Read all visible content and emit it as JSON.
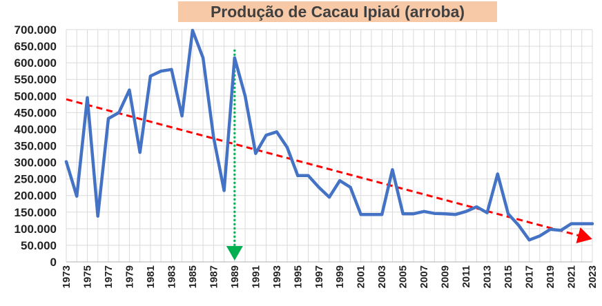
{
  "chart_data": {
    "type": "line",
    "title": "Produção de Cacau Ipiaú (arroba)",
    "xlabel": "",
    "ylabel": "",
    "ylim": [
      0,
      700000
    ],
    "yticks": [
      0,
      50000,
      100000,
      150000,
      200000,
      250000,
      300000,
      350000,
      400000,
      450000,
      500000,
      550000,
      600000,
      650000,
      700000
    ],
    "ytick_labels": [
      "0",
      "50.000",
      "100.000",
      "150.000",
      "200.000",
      "250.000",
      "300.000",
      "350.000",
      "400.000",
      "450.000",
      "500.000",
      "550.000",
      "600.000",
      "650.000",
      "700.000"
    ],
    "xlim": [
      1973,
      2023
    ],
    "xtick_labels": [
      "1973",
      "1975",
      "1977",
      "1979",
      "1981",
      "1983",
      "1985",
      "1987",
      "1989",
      "1991",
      "1993",
      "1995",
      "1997",
      "1999",
      "2001",
      "2003",
      "2005",
      "2007",
      "2009",
      "2011",
      "2013",
      "2015",
      "2017",
      "2019",
      "2021",
      "2023"
    ],
    "grid": true,
    "series": [
      {
        "color": "#4472c4",
        "x": [
          1973,
          1974,
          1975,
          1976,
          1977,
          1978,
          1979,
          1980,
          1981,
          1982,
          1983,
          1984,
          1985,
          1986,
          1987,
          1988,
          1989,
          1990,
          1991,
          1992,
          1993,
          1994,
          1995,
          1996,
          1997,
          1998,
          1999,
          2000,
          2001,
          2002,
          2003,
          2004,
          2005,
          2006,
          2007,
          2008,
          2009,
          2010,
          2011,
          2012,
          2013,
          2014,
          2015,
          2016,
          2017,
          2018,
          2019,
          2020,
          2021,
          2022,
          2023
        ],
        "values": [
          302000,
          198000,
          495000,
          138000,
          432000,
          450000,
          518000,
          330000,
          560000,
          575000,
          580000,
          440000,
          698000,
          615000,
          375000,
          215000,
          615000,
          500000,
          327000,
          382000,
          392000,
          345000,
          260000,
          260000,
          225000,
          195000,
          245000,
          225000,
          143000,
          143000,
          143000,
          278000,
          145000,
          145000,
          152000,
          146000,
          145000,
          143000,
          152000,
          166000,
          148000,
          265000,
          145000,
          110000,
          66000,
          78000,
          98000,
          95000,
          115000,
          115000,
          115000
        ]
      }
    ],
    "trendline": {
      "color": "#ff0000",
      "x": [
        1973,
        2023
      ],
      "values": [
        490000,
        72000
      ]
    },
    "marker_line": {
      "color": "#00b050",
      "x": 1989,
      "from": 640000,
      "to": 0
    }
  }
}
